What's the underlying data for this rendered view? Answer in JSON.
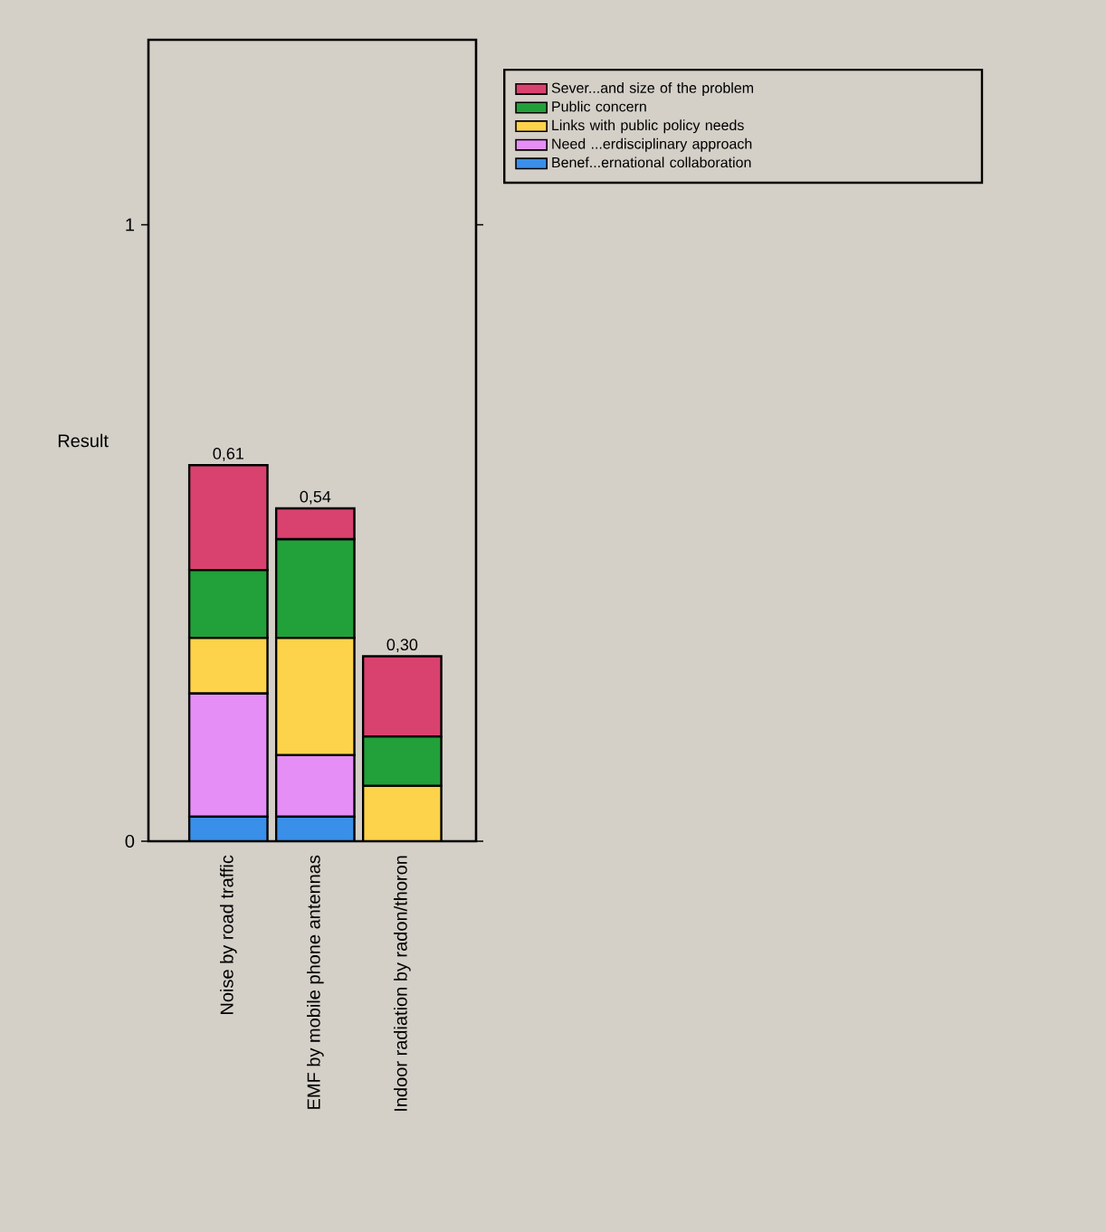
{
  "chart_data": {
    "type": "bar",
    "stacked": true,
    "ylabel": "Result",
    "categories": [
      "Noise by road traffic",
      "EMF by mobile phone antennas",
      "Indoor radiation by radon/thoron"
    ],
    "series": [
      {
        "name": "Benef...ernational collaboration",
        "color": "#3a8fe8",
        "values": [
          0.04,
          0.04,
          null
        ]
      },
      {
        "name": "Need ...erdisciplinary approach",
        "color": "#e58ef5",
        "values": [
          0.2,
          0.1,
          null
        ]
      },
      {
        "name": "Links with public policy needs",
        "color": "#fcd34a",
        "values": [
          0.09,
          0.19,
          0.09
        ]
      },
      {
        "name": "Public concern",
        "color": "#22a03a",
        "values": [
          0.11,
          0.16,
          0.08
        ]
      },
      {
        "name": "Sever...and size of the problem",
        "color": "#d9426e",
        "values": [
          0.17,
          0.05,
          0.13
        ]
      }
    ],
    "totals": [
      "0,61",
      "0,54",
      "0,30"
    ],
    "ylim": [
      0,
      1.3
    ],
    "yticks": [
      0,
      1
    ],
    "legend": "top right"
  }
}
